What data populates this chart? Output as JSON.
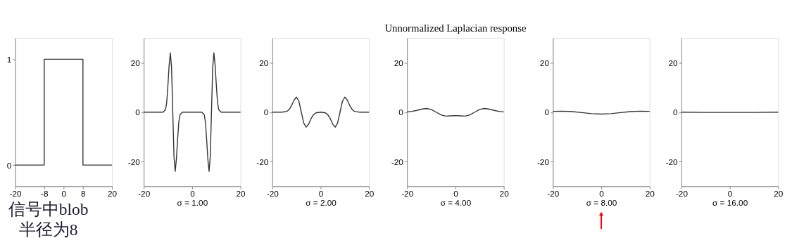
{
  "chart_data": [
    {
      "type": "line",
      "annotations": [
        "信号中blob\n半径为8"
      ],
      "x": [
        -20,
        -8,
        -8,
        8,
        8,
        20
      ],
      "values": [
        0,
        0,
        1,
        1,
        0,
        0
      ],
      "color": "#333333",
      "xlim": [
        -20,
        20
      ],
      "xticks": [
        -20,
        -8,
        0,
        8,
        20
      ],
      "ylim": [
        -0.2,
        1.2
      ],
      "yticks": [
        0,
        1
      ],
      "grid": false
    },
    {
      "type": "line",
      "xlabel": "σ = 1.00",
      "x": [
        -20,
        -12,
        -11,
        -10.5,
        -10,
        -9.5,
        -9,
        -8.5,
        -8,
        -7.5,
        -7,
        -6.5,
        -6,
        -5.5,
        -5,
        -4,
        0,
        4,
        5,
        5.5,
        6,
        6.5,
        7,
        7.5,
        8,
        8.5,
        9,
        9.5,
        10,
        10.5,
        11,
        12,
        20
      ],
      "values": [
        0,
        0,
        1,
        4,
        11,
        19,
        24,
        18,
        0,
        -18,
        -24,
        -19,
        -11,
        -4,
        -1,
        0,
        0,
        0,
        -1,
        -4,
        -11,
        -19,
        -24,
        -18,
        0,
        18,
        24,
        19,
        11,
        4,
        1,
        0,
        0
      ],
      "color": "#333333",
      "xlim": [
        -20,
        20
      ],
      "xticks": [
        -20,
        0,
        20
      ],
      "ylim": [
        -30,
        30
      ],
      "yticks": [
        -20,
        0,
        20
      ],
      "grid": false
    },
    {
      "type": "line",
      "xlabel": "σ = 2.00",
      "x": [
        -20,
        -16,
        -14,
        -13,
        -12,
        -11,
        -10,
        -9,
        -8,
        -7,
        -6,
        -5,
        -4,
        -3,
        -2,
        0,
        2,
        3,
        4,
        5,
        6,
        7,
        8,
        9,
        10,
        11,
        12,
        13,
        14,
        16,
        20
      ],
      "values": [
        0,
        0,
        0.3,
        1.1,
        2.7,
        4.9,
        6.1,
        4.4,
        0,
        -4.4,
        -6.1,
        -4.9,
        -2.7,
        -1.1,
        -0.3,
        0,
        -0.3,
        -1.1,
        -2.7,
        -4.9,
        -6.1,
        -4.4,
        0,
        4.4,
        6.1,
        4.9,
        2.7,
        1.1,
        0.3,
        0,
        0
      ],
      "color": "#333333",
      "xlim": [
        -20,
        20
      ],
      "xticks": [
        -20,
        0,
        20
      ],
      "ylim": [
        -30,
        30
      ],
      "yticks": [
        -20,
        0,
        20
      ],
      "grid": false
    },
    {
      "type": "line",
      "title": "Unnormalized Laplacian response",
      "xlabel": "σ = 4.00",
      "x": [
        -20,
        -18,
        -16,
        -14,
        -12,
        -10,
        -8,
        -6,
        -4,
        -2,
        0,
        2,
        4,
        6,
        8,
        10,
        12,
        14,
        16,
        18,
        20
      ],
      "values": [
        0.1,
        0.3,
        0.7,
        1.2,
        1.5,
        1.1,
        0,
        -1.1,
        -1.6,
        -1.5,
        -1.4,
        -1.5,
        -1.6,
        -1.1,
        0,
        1.1,
        1.5,
        1.2,
        0.7,
        0.3,
        0.1
      ],
      "color": "#333333",
      "xlim": [
        -20,
        20
      ],
      "xticks": [
        -20,
        0,
        20
      ],
      "ylim": [
        -30,
        30
      ],
      "yticks": [
        -20,
        0,
        20
      ],
      "grid": false
    },
    {
      "type": "line",
      "xlabel": "σ = 8.00",
      "x": [
        -20,
        -16,
        -12,
        -8,
        -4,
        0,
        4,
        8,
        12,
        16,
        20
      ],
      "values": [
        0.3,
        0.4,
        0.2,
        -0.2,
        -0.6,
        -0.8,
        -0.6,
        -0.2,
        0.2,
        0.4,
        0.3
      ],
      "color": "#333333",
      "xlim": [
        -20,
        20
      ],
      "xticks": [
        -20,
        0,
        20
      ],
      "ylim": [
        -30,
        30
      ],
      "yticks": [
        -20,
        0,
        20
      ],
      "grid": false
    },
    {
      "type": "line",
      "xlabel": "σ = 16.00",
      "x": [
        -20,
        -10,
        0,
        10,
        20
      ],
      "values": [
        0,
        -0.1,
        -0.1,
        -0.1,
        0
      ],
      "color": "#333333",
      "xlim": [
        -20,
        20
      ],
      "xticks": [
        -20,
        0,
        20
      ],
      "ylim": [
        -30,
        30
      ],
      "yticks": [
        -20,
        0,
        20
      ],
      "grid": false
    }
  ]
}
